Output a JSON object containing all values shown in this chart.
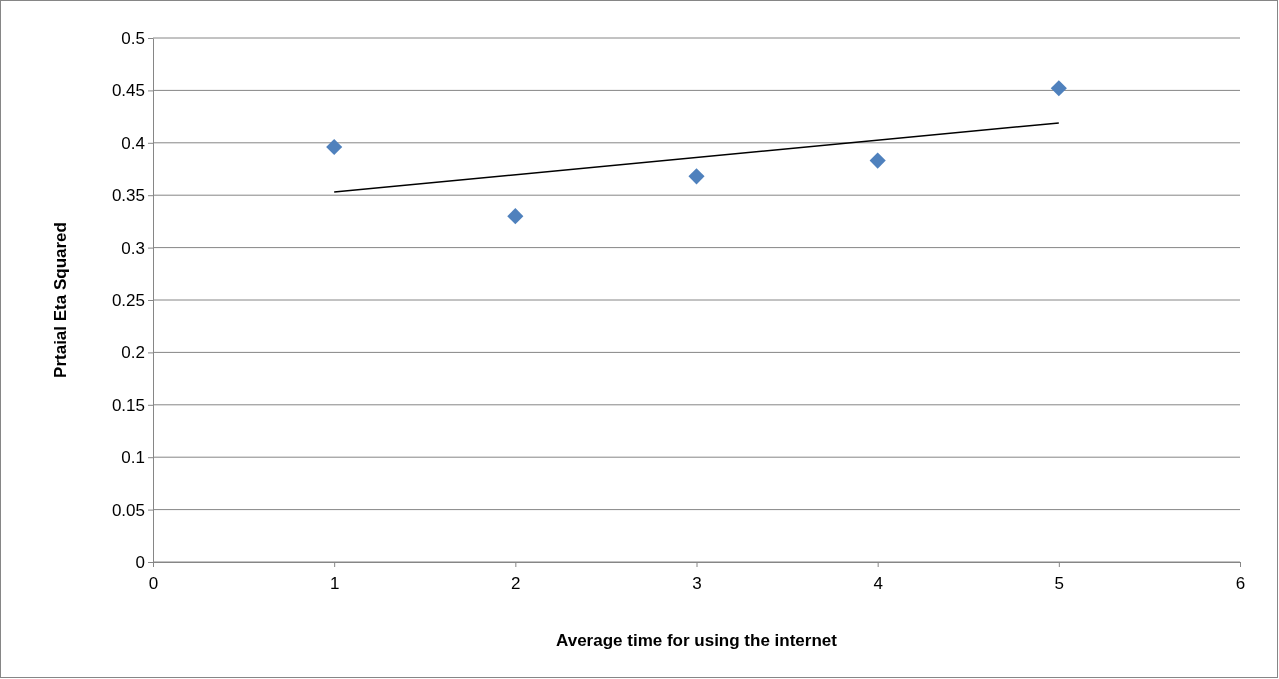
{
  "chart_data": {
    "type": "scatter",
    "xlabel": "Average time for using the internet",
    "ylabel": "Prtaial Eta Squared",
    "x": [
      1,
      2,
      3,
      4,
      5
    ],
    "series": [
      {
        "color": "#4f81bd",
        "marker": "diamond",
        "values": [
          0.396,
          0.33,
          0.368,
          0.383,
          0.452
        ]
      },
      {
        "type": "line",
        "color": "#000000",
        "marker": "none",
        "x": [
          1,
          5
        ],
        "values": [
          0.353,
          0.419
        ]
      }
    ],
    "xlim": [
      0,
      6
    ],
    "xticks": [
      0,
      1,
      2,
      3,
      4,
      5,
      6
    ],
    "ylim": [
      0,
      0.5
    ],
    "yticks": [
      0,
      0.05,
      0.1,
      0.15,
      0.2,
      0.25,
      0.3,
      0.35,
      0.4,
      0.45,
      0.5
    ],
    "grid": "y"
  }
}
